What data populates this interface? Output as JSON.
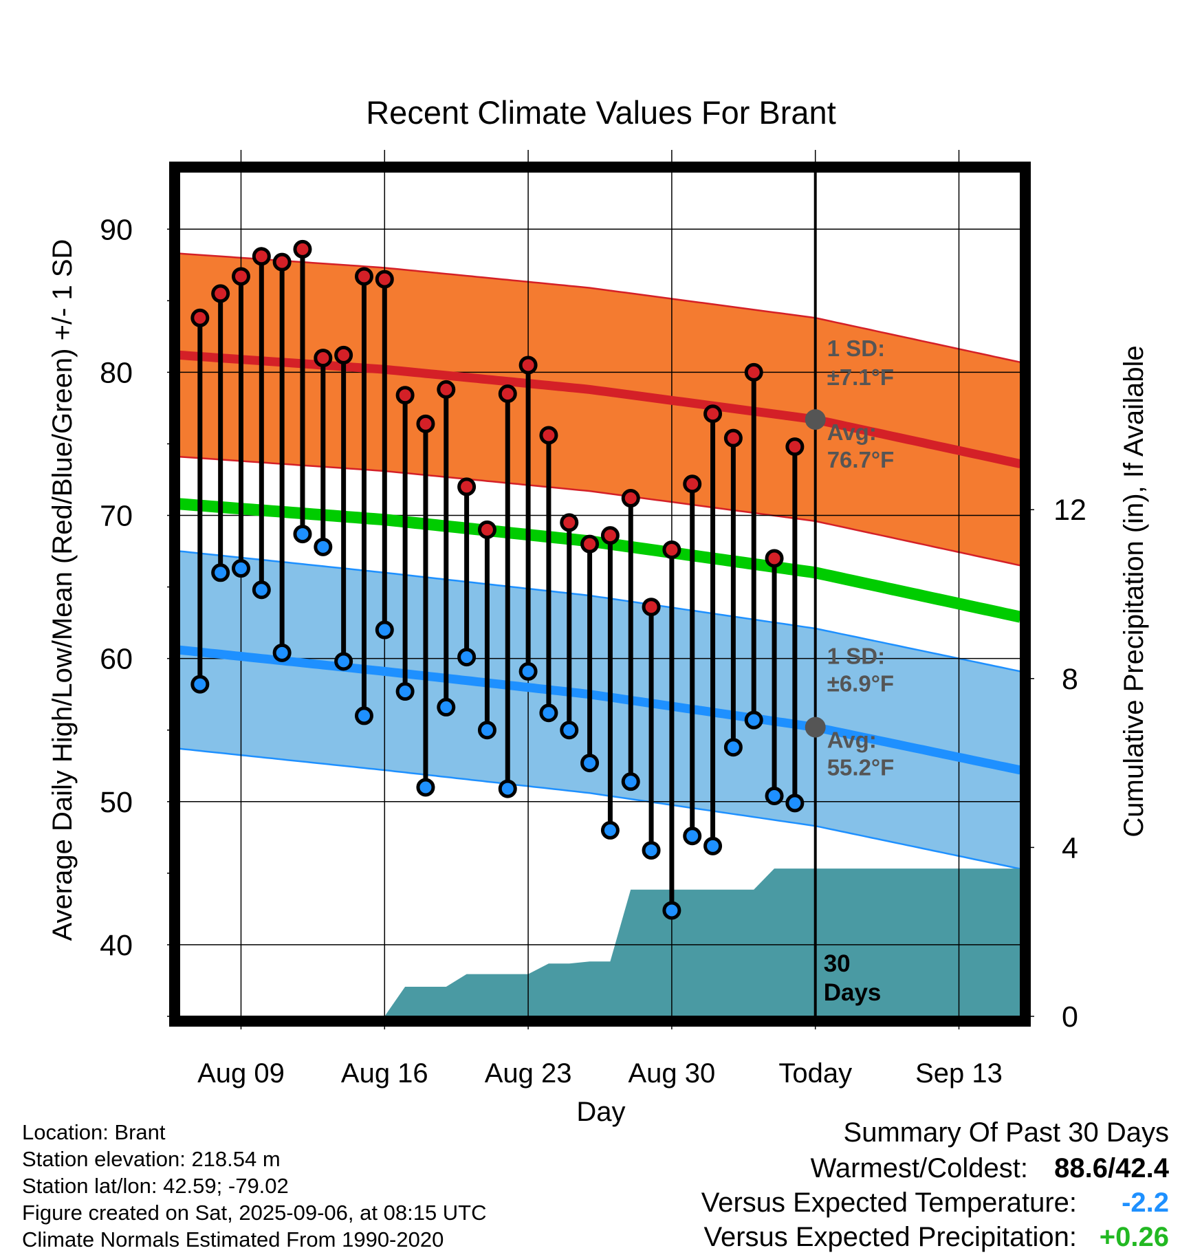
{
  "chart_data": {
    "type": "line",
    "title": "Recent Climate Values For Brant",
    "xlabel": "Day",
    "ylabel": "Average Daily High/Low/Mean (Red/Blue/Green) +/- 1 SD",
    "y2label": "Cumulative Precipitation (in), If Available",
    "ylim": [
      35,
      94
    ],
    "y2lim": [
      0,
      20
    ],
    "yticks": [
      40,
      50,
      60,
      70,
      80,
      90
    ],
    "y2ticks": [
      0,
      4,
      8,
      12
    ],
    "xrange": [
      "Aug 06",
      "Sep 16"
    ],
    "xticks": [
      {
        "date": "Aug 09",
        "label": "Aug 09"
      },
      {
        "date": "Aug 16",
        "label": "Aug 16"
      },
      {
        "date": "Aug 23",
        "label": "Aug 23"
      },
      {
        "date": "Aug 30",
        "label": "Aug 30"
      },
      {
        "date": "Sep 06",
        "label": "Today"
      },
      {
        "date": "Sep 13",
        "label": "Sep 13"
      }
    ],
    "grid": true,
    "today_marker": {
      "date": "Sep 06",
      "label_line1": "30",
      "label_line2": "Days"
    },
    "dates": [
      "Aug 07",
      "Aug 08",
      "Aug 09",
      "Aug 10",
      "Aug 11",
      "Aug 12",
      "Aug 13",
      "Aug 14",
      "Aug 15",
      "Aug 16",
      "Aug 17",
      "Aug 18",
      "Aug 19",
      "Aug 20",
      "Aug 21",
      "Aug 22",
      "Aug 23",
      "Aug 24",
      "Aug 25",
      "Aug 26",
      "Aug 27",
      "Aug 28",
      "Aug 29",
      "Aug 30",
      "Aug 31",
      "Sep 01",
      "Sep 02",
      "Sep 03",
      "Sep 04",
      "Sep 05"
    ],
    "series": [
      {
        "name": "High",
        "color": "#d42027",
        "values": [
          83.8,
          85.5,
          86.7,
          88.1,
          87.7,
          88.6,
          81.0,
          81.2,
          86.7,
          86.5,
          78.4,
          76.4,
          78.8,
          72.0,
          69.0,
          78.5,
          80.5,
          75.6,
          69.5,
          68.0,
          68.6,
          71.2,
          63.6,
          67.6,
          72.2,
          77.1,
          75.4,
          80.0,
          67.0,
          74.8
        ]
      },
      {
        "name": "Low",
        "color": "#1e90ff",
        "values": [
          58.2,
          66.0,
          66.3,
          64.8,
          60.4,
          68.7,
          67.8,
          59.8,
          56.0,
          62.0,
          57.7,
          51.0,
          56.6,
          60.1,
          55.0,
          50.9,
          59.1,
          56.2,
          55.0,
          52.7,
          48.0,
          51.4,
          46.6,
          42.4,
          47.6,
          46.9,
          53.8,
          55.7,
          50.4,
          49.9
        ]
      }
    ],
    "normals": {
      "dates": [
        "Aug 06",
        "Aug 16",
        "Aug 26",
        "Sep 06",
        "Sep 16"
      ],
      "high_avg": [
        81.2,
        80.2,
        78.8,
        76.7,
        73.6
      ],
      "high_sd": 7.1,
      "low_avg": [
        60.6,
        59.1,
        57.5,
        55.2,
        52.2
      ],
      "low_sd": 6.9,
      "mean_avg": [
        70.8,
        69.7,
        68.2,
        66.0,
        62.9
      ],
      "colors": {
        "high_band": "#f47b30",
        "high_line": "#d42027",
        "low_band": "#85c1e9",
        "low_line": "#1e90ff",
        "mean_line": "#00cc00"
      }
    },
    "annotations": {
      "high_sd_line1": "1 SD:",
      "high_sd_line2": "±7.1°F",
      "high_avg_line1": "Avg:",
      "high_avg_line2": "76.7°F",
      "low_sd_line1": "1 SD:",
      "low_sd_line2": "±6.9°F",
      "low_avg_line1": "Avg:",
      "low_avg_line2": "55.2°F",
      "high_today_value": 76.7,
      "low_today_value": 55.2
    },
    "precipitation": {
      "color": "#4a9aa3",
      "dates": [
        "Aug 06",
        "Aug 15",
        "Aug 16",
        "Aug 17",
        "Aug 18",
        "Aug 19",
        "Aug 20",
        "Aug 21",
        "Aug 22",
        "Aug 23",
        "Aug 24",
        "Aug 25",
        "Aug 26",
        "Aug 27",
        "Aug 28",
        "Aug 29",
        "Aug 30",
        "Aug 31",
        "Sep 01",
        "Sep 02",
        "Sep 03",
        "Sep 04",
        "Sep 05",
        "Sep 16"
      ],
      "values": [
        0,
        0,
        0,
        0.7,
        0.7,
        0.7,
        1.0,
        1.0,
        1.0,
        1.0,
        1.25,
        1.25,
        1.3,
        1.3,
        3.0,
        3.0,
        3.0,
        3.0,
        3.0,
        3.0,
        3.0,
        3.5,
        3.5,
        3.5
      ]
    }
  },
  "footer": {
    "location": "Location: Brant",
    "elevation": "Station elevation: 218.54 m",
    "latlon": "Station lat/lon: 42.59; -79.02",
    "created": "Figure created on Sat, 2025-09-06, at 08:15 UTC",
    "normals": "Climate Normals Estimated From 1990-2020"
  },
  "summary": {
    "title": "Summary Of Past 30 Days",
    "warmest_label": "Warmest/Coldest:",
    "warmest_value": "88.6",
    "separator": "/",
    "coldest_value": "42.4",
    "temp_label": "Versus Expected Temperature:",
    "temp_value": "-2.2",
    "temp_color": "#1e90ff",
    "precip_label": "Versus Expected Precipitation:",
    "precip_value": "+0.26",
    "precip_color": "#22b822"
  }
}
